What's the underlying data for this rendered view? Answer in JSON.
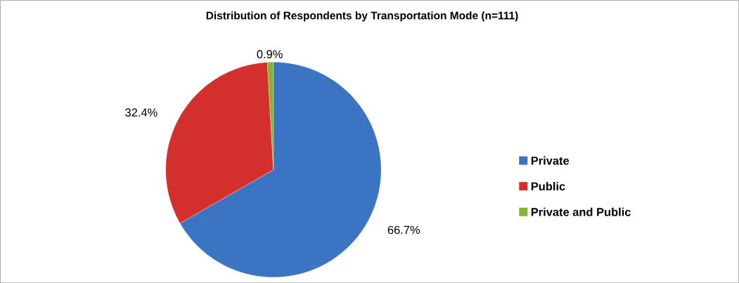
{
  "chart_data": {
    "type": "pie",
    "title": "Distribution of Respondents by Transportation Mode (n=111)",
    "categories": [
      "Private",
      "Public",
      "Private and Public"
    ],
    "values": [
      66.7,
      32.4,
      0.9
    ],
    "colors": [
      "#3b74c2",
      "#d3302d",
      "#86b431"
    ],
    "value_labels": [
      "66.7%",
      "32.4%",
      "0.9%"
    ],
    "legend": "right"
  }
}
